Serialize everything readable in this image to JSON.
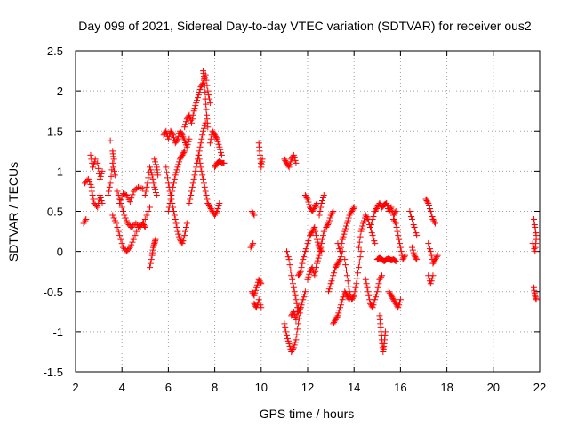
{
  "chart_data": {
    "type": "scatter",
    "title": "Day 099 of 2021, Sidereal Day-to-day VTEC variation (SDTVAR) for receiver ous2",
    "xlabel": "GPS time / hours",
    "ylabel": "SDTVAR / TECUs",
    "xlim": [
      2,
      22
    ],
    "ylim": [
      -1.5,
      2.5
    ],
    "xticks": [
      2,
      4,
      6,
      8,
      10,
      12,
      14,
      16,
      18,
      20,
      22
    ],
    "yticks": [
      2.5,
      2,
      1.5,
      1,
      0.5,
      0,
      -0.5,
      -1,
      -1.5
    ],
    "xtick_labels": [
      "2",
      "4",
      "6",
      "8",
      "10",
      "12",
      "14",
      "16",
      "18",
      "20",
      "22"
    ],
    "ytick_labels": [
      "2.5",
      "2",
      "1.5",
      "1",
      "0.5",
      "0",
      "-0.5",
      "-1",
      "-1.5"
    ],
    "grid": true,
    "marker": "+",
    "marker_color": "#ff0000",
    "segments": [
      {
        "x": [
          2.35,
          2.45
        ],
        "y": [
          0.35,
          0.4
        ]
      },
      {
        "x": [
          2.4,
          2.55,
          2.7
        ],
        "y": [
          0.85,
          0.9,
          0.8
        ]
      },
      {
        "x": [
          2.65,
          2.75,
          2.85
        ],
        "y": [
          1.2,
          1.05,
          1.15
        ]
      },
      {
        "x": [
          2.7,
          2.8,
          2.95,
          3.05,
          3.15
        ],
        "y": [
          0.75,
          0.6,
          0.55,
          0.7,
          0.6
        ]
      },
      {
        "x": [
          2.95,
          3.05,
          3.15
        ],
        "y": [
          1.1,
          0.9,
          1.0
        ]
      },
      {
        "x": [
          3.4,
          3.5,
          3.6,
          3.7
        ],
        "y": [
          0.7,
          0.85,
          1.1,
          0.95
        ]
      },
      {
        "x": [
          3.5
        ],
        "y": [
          1.38
        ]
      },
      {
        "x": [
          3.6,
          3.65
        ],
        "y": [
          1.25,
          1.15
        ]
      },
      {
        "x": [
          3.6,
          3.75,
          3.9,
          4.05,
          4.2,
          4.35,
          4.5,
          4.7,
          4.9,
          5.0
        ],
        "y": [
          0.45,
          0.35,
          0.2,
          0.05,
          0.0,
          0.05,
          0.15,
          0.3,
          0.35,
          0.3
        ]
      },
      {
        "x": [
          3.8,
          3.95,
          4.1,
          4.25,
          4.4,
          4.6,
          4.8,
          5.0,
          5.2
        ],
        "y": [
          0.75,
          0.6,
          0.45,
          0.35,
          0.3,
          0.35,
          0.3,
          0.4,
          0.55
        ]
      },
      {
        "x": [
          3.9,
          4.05,
          4.2,
          4.35,
          4.5,
          4.7,
          4.9
        ],
        "y": [
          0.6,
          0.72,
          0.7,
          0.62,
          0.75,
          0.8,
          0.78
        ]
      },
      {
        "x": [
          5.0,
          5.1,
          5.2,
          5.3,
          5.4,
          5.5
        ],
        "y": [
          0.7,
          0.85,
          1.05,
          0.95,
          0.8,
          0.7
        ]
      },
      {
        "x": [
          5.2,
          5.3,
          5.35,
          5.4,
          5.45
        ],
        "y": [
          -0.2,
          -0.05,
          0.05,
          0.1,
          0.15
        ]
      },
      {
        "x": [
          5.4,
          5.5,
          5.55
        ],
        "y": [
          1.15,
          1.05,
          0.95
        ]
      },
      {
        "x": [
          5.8,
          5.9,
          6.0,
          6.1,
          6.2,
          6.3,
          6.4,
          6.5,
          6.6,
          6.7,
          6.8,
          6.9
        ],
        "y": [
          1.45,
          1.5,
          1.4,
          1.5,
          1.45,
          1.35,
          1.4,
          1.5,
          1.45,
          1.38,
          1.3,
          1.4
        ]
      },
      {
        "x": [
          5.9,
          6.0,
          6.1,
          6.2,
          6.3,
          6.4,
          6.5,
          6.6,
          6.7,
          6.8
        ],
        "y": [
          1.05,
          0.85,
          0.7,
          0.55,
          0.4,
          0.25,
          0.15,
          0.1,
          0.2,
          0.35
        ]
      },
      {
        "x": [
          6.0,
          6.1,
          6.2,
          6.3,
          6.4,
          6.5,
          6.6,
          6.7
        ],
        "y": [
          0.5,
          0.65,
          0.8,
          0.95,
          1.05,
          1.15,
          1.2,
          1.25
        ]
      },
      {
        "x": [
          6.7,
          6.8,
          6.9,
          7.0,
          7.1,
          7.2,
          7.3,
          7.4,
          7.5,
          7.6,
          7.7,
          7.8
        ],
        "y": [
          1.55,
          1.65,
          1.7,
          1.6,
          1.75,
          1.85,
          1.95,
          2.05,
          2.1,
          2.2,
          2.0,
          1.85
        ]
      },
      {
        "x": [
          6.9,
          7.0,
          7.1,
          7.2,
          7.3,
          7.4,
          7.5,
          7.6
        ],
        "y": [
          0.6,
          0.75,
          0.9,
          1.05,
          1.2,
          1.35,
          1.5,
          1.6
        ]
      },
      {
        "x": [
          7.3,
          7.4,
          7.5,
          7.6,
          7.7,
          7.8,
          7.9,
          8.0,
          8.1,
          8.2
        ],
        "y": [
          1.2,
          1.05,
          0.9,
          0.75,
          0.6,
          0.55,
          0.5,
          0.45,
          0.5,
          0.6
        ]
      },
      {
        "x": [
          7.5,
          7.55,
          7.6,
          7.65,
          7.7
        ],
        "y": [
          2.25,
          2.15,
          1.9,
          1.7,
          1.55
        ]
      },
      {
        "x": [
          7.8,
          7.9,
          8.0,
          8.1,
          8.2,
          8.3
        ],
        "y": [
          1.35,
          1.5,
          1.45,
          1.4,
          1.3,
          1.2
        ]
      },
      {
        "x": [
          8.0,
          8.1,
          8.2,
          8.3,
          8.4
        ],
        "y": [
          1.05,
          1.1,
          1.12,
          1.1,
          1.1
        ]
      },
      {
        "x": [
          9.55,
          9.65
        ],
        "y": [
          0.05,
          0.1
        ]
      },
      {
        "x": [
          9.6,
          9.7
        ],
        "y": [
          0.5,
          0.45
        ]
      },
      {
        "x": [
          9.6,
          9.7,
          9.8,
          9.9,
          10.0
        ],
        "y": [
          -0.5,
          -0.55,
          -0.45,
          -0.35,
          -0.4
        ]
      },
      {
        "x": [
          9.7,
          9.8,
          9.9,
          10.0
        ],
        "y": [
          -0.65,
          -0.7,
          -0.6,
          -0.7
        ]
      },
      {
        "x": [
          9.9,
          9.95,
          10.0,
          10.05
        ],
        "y": [
          1.35,
          1.2,
          1.05,
          1.15
        ]
      },
      {
        "x": [
          11.0,
          11.1,
          11.2,
          11.3,
          11.4,
          11.5
        ],
        "y": [
          1.15,
          1.1,
          1.05,
          1.15,
          1.2,
          1.1
        ]
      },
      {
        "x": [
          11.0,
          11.1,
          11.2,
          11.3,
          11.4,
          11.5,
          11.6,
          11.7,
          11.8,
          11.9
        ],
        "y": [
          -0.9,
          -1.05,
          -1.15,
          -1.25,
          -1.2,
          -1.1,
          -0.9,
          -0.7,
          -0.6,
          -0.5
        ]
      },
      {
        "x": [
          11.1,
          11.2,
          11.3,
          11.4,
          11.5,
          11.6,
          11.7
        ],
        "y": [
          0.0,
          -0.1,
          -0.3,
          -0.45,
          -0.6,
          -0.75,
          -0.7
        ]
      },
      {
        "x": [
          11.3,
          11.4,
          11.5,
          11.6
        ],
        "y": [
          -0.8,
          -0.75,
          -0.85,
          -0.7
        ]
      },
      {
        "x": [
          11.6,
          11.7,
          11.8,
          11.9,
          12.0,
          12.1,
          12.2,
          12.3,
          12.4,
          12.5,
          12.6
        ],
        "y": [
          -0.3,
          -0.25,
          -0.1,
          0.0,
          0.1,
          0.2,
          0.25,
          0.3,
          0.15,
          0.05,
          0.0
        ]
      },
      {
        "x": [
          11.9,
          12.0,
          12.1,
          12.2,
          12.3,
          12.4
        ],
        "y": [
          0.7,
          0.65,
          0.55,
          0.5,
          0.55,
          0.6
        ]
      },
      {
        "x": [
          12.0,
          12.1,
          12.2,
          12.3,
          12.4,
          12.5,
          12.6,
          12.7
        ],
        "y": [
          -0.35,
          -0.25,
          -0.2,
          -0.3,
          -0.15,
          -0.05,
          0.1,
          0.25
        ]
      },
      {
        "x": [
          12.5,
          12.6,
          12.7
        ],
        "y": [
          0.45,
          0.6,
          0.7
        ]
      },
      {
        "x": [
          12.8,
          12.9,
          13.0,
          13.1
        ],
        "y": [
          0.3,
          0.35,
          0.45,
          0.5
        ]
      },
      {
        "x": [
          12.9,
          13.0,
          13.1,
          13.2,
          13.3,
          13.4,
          13.5
        ],
        "y": [
          -0.5,
          -0.4,
          -0.3,
          -0.2,
          -0.15,
          -0.1,
          0.0
        ]
      },
      {
        "x": [
          13.1,
          13.2,
          13.3,
          13.4,
          13.5,
          13.6,
          13.7,
          13.8
        ],
        "y": [
          -0.9,
          -0.85,
          -0.8,
          -0.7,
          -0.6,
          -0.5,
          -0.55,
          -0.6
        ]
      },
      {
        "x": [
          13.3,
          13.4,
          13.5,
          13.6,
          13.7,
          13.8,
          13.9,
          14.0
        ],
        "y": [
          0.1,
          0.0,
          0.15,
          0.25,
          0.35,
          0.45,
          0.5,
          0.55
        ]
      },
      {
        "x": [
          13.6,
          13.7,
          13.8,
          13.9,
          14.0,
          14.1,
          14.2,
          14.3
        ],
        "y": [
          -0.1,
          -0.3,
          -0.5,
          -0.6,
          -0.55,
          -0.4,
          -0.2,
          0.0
        ]
      },
      {
        "x": [
          14.2,
          14.3,
          14.4,
          14.5,
          14.6,
          14.7,
          14.8,
          14.9
        ],
        "y": [
          0.05,
          0.25,
          0.35,
          0.45,
          0.4,
          0.3,
          0.2,
          0.1
        ]
      },
      {
        "x": [
          14.5,
          14.6,
          14.7,
          14.8,
          14.9,
          15.0,
          15.1,
          15.2
        ],
        "y": [
          -0.35,
          -0.5,
          -0.65,
          -0.7,
          -0.6,
          -0.5,
          -0.35,
          -0.3
        ]
      },
      {
        "x": [
          14.7,
          14.8,
          14.9,
          15.0,
          15.1,
          15.2,
          15.3,
          15.4,
          15.5,
          15.6,
          15.7,
          15.8
        ],
        "y": [
          0.3,
          0.4,
          0.5,
          0.55,
          0.6,
          0.55,
          0.58,
          0.6,
          0.5,
          0.55,
          0.45,
          0.5
        ]
      },
      {
        "x": [
          15.1,
          15.15,
          15.2,
          15.25,
          15.3,
          15.35
        ],
        "y": [
          -0.8,
          -0.95,
          -1.1,
          -1.25,
          -1.15,
          -1.0
        ]
      },
      {
        "x": [
          15.0,
          15.1,
          15.2,
          15.3,
          15.4,
          15.5,
          15.6,
          15.7,
          15.8
        ],
        "y": [
          -0.1,
          -0.08,
          -0.1,
          -0.12,
          -0.1,
          -0.09,
          -0.11,
          -0.1,
          -0.12
        ]
      },
      {
        "x": [
          15.5,
          15.6,
          15.7,
          15.8,
          15.9,
          16.0
        ],
        "y": [
          -0.5,
          -0.55,
          -0.6,
          -0.65,
          -0.7,
          -0.6
        ]
      },
      {
        "x": [
          15.7,
          15.8,
          15.9,
          16.0,
          16.1,
          16.2
        ],
        "y": [
          0.4,
          0.35,
          0.2,
          0.05,
          -0.1,
          -0.05
        ]
      },
      {
        "x": [
          16.4,
          16.5,
          16.6,
          16.7
        ],
        "y": [
          0.5,
          0.4,
          0.3,
          0.2
        ]
      },
      {
        "x": [
          16.5,
          16.6,
          16.7
        ],
        "y": [
          0.05,
          -0.05,
          -0.1
        ]
      },
      {
        "x": [
          17.1,
          17.2,
          17.3,
          17.4,
          17.5
        ],
        "y": [
          0.65,
          0.6,
          0.5,
          0.4,
          0.35
        ]
      },
      {
        "x": [
          17.2,
          17.3,
          17.4,
          17.5,
          17.6
        ],
        "y": [
          0.1,
          0.0,
          -0.15,
          -0.1,
          -0.05
        ]
      },
      {
        "x": [
          17.2,
          17.3,
          17.4
        ],
        "y": [
          -0.3,
          -0.4,
          -0.3
        ]
      },
      {
        "x": [
          21.75,
          21.8,
          21.85
        ],
        "y": [
          0.4,
          0.3,
          0.2
        ]
      },
      {
        "x": [
          21.7,
          21.8,
          21.85
        ],
        "y": [
          0.1,
          0.0,
          0.15
        ]
      },
      {
        "x": [
          21.75,
          21.8,
          21.85
        ],
        "y": [
          -0.45,
          -0.55,
          -0.6
        ]
      }
    ]
  }
}
